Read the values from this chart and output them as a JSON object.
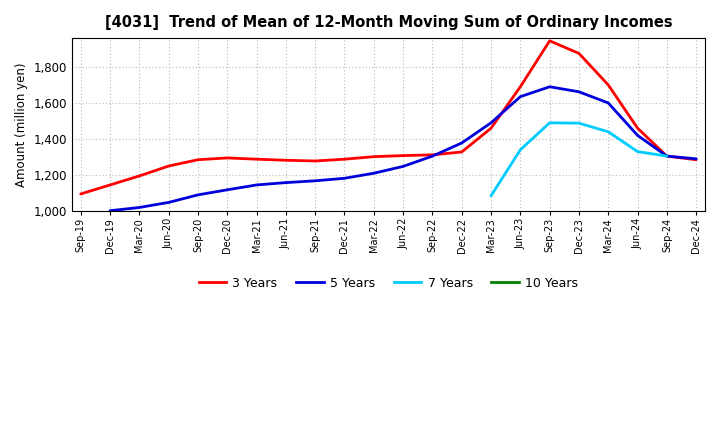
{
  "title": "[4031]  Trend of Mean of 12-Month Moving Sum of Ordinary Incomes",
  "ylabel": "Amount (million yen)",
  "ylim": [
    1000,
    1960
  ],
  "yticks": [
    1000,
    1200,
    1400,
    1600,
    1800
  ],
  "background_color": "#ffffff",
  "grid_color": "#aaaaaa",
  "x_labels": [
    "Sep-19",
    "Dec-19",
    "Mar-20",
    "Jun-20",
    "Sep-20",
    "Dec-20",
    "Mar-21",
    "Jun-21",
    "Sep-21",
    "Dec-21",
    "Mar-22",
    "Jun-22",
    "Sep-22",
    "Dec-22",
    "Mar-23",
    "Jun-23",
    "Sep-23",
    "Dec-23",
    "Mar-24",
    "Jun-24",
    "Sep-24",
    "Dec-24"
  ],
  "series": {
    "3 Years": {
      "color": "#ff0000",
      "data": [
        1095,
        1145,
        1195,
        1250,
        1285,
        1295,
        1288,
        1282,
        1278,
        1288,
        1302,
        1308,
        1312,
        1328,
        1460,
        1690,
        1945,
        1875,
        1700,
        1460,
        1305,
        1285
      ]
    },
    "5 Years": {
      "color": "#0000dd",
      "data": [
        null,
        1002,
        1020,
        1048,
        1090,
        1118,
        1145,
        1158,
        1168,
        1182,
        1210,
        1248,
        1305,
        1378,
        1490,
        1635,
        1690,
        1662,
        1600,
        1420,
        1305,
        1290
      ]
    },
    "7 Years": {
      "color": "#00ccff",
      "data": [
        null,
        null,
        null,
        null,
        null,
        null,
        null,
        null,
        null,
        null,
        null,
        null,
        null,
        null,
        1085,
        1340,
        1490,
        1488,
        1440,
        1330,
        1305,
        null
      ]
    },
    "10 Years": {
      "color": "#008000",
      "data": [
        null,
        null,
        null,
        null,
        null,
        null,
        null,
        null,
        null,
        null,
        null,
        null,
        null,
        null,
        null,
        null,
        null,
        null,
        null,
        null,
        null,
        null
      ]
    }
  },
  "legend_labels": [
    "3 Years",
    "5 Years",
    "7 Years",
    "10 Years"
  ],
  "legend_colors": [
    "#ff0000",
    "#0000dd",
    "#00ccff",
    "#008000"
  ]
}
